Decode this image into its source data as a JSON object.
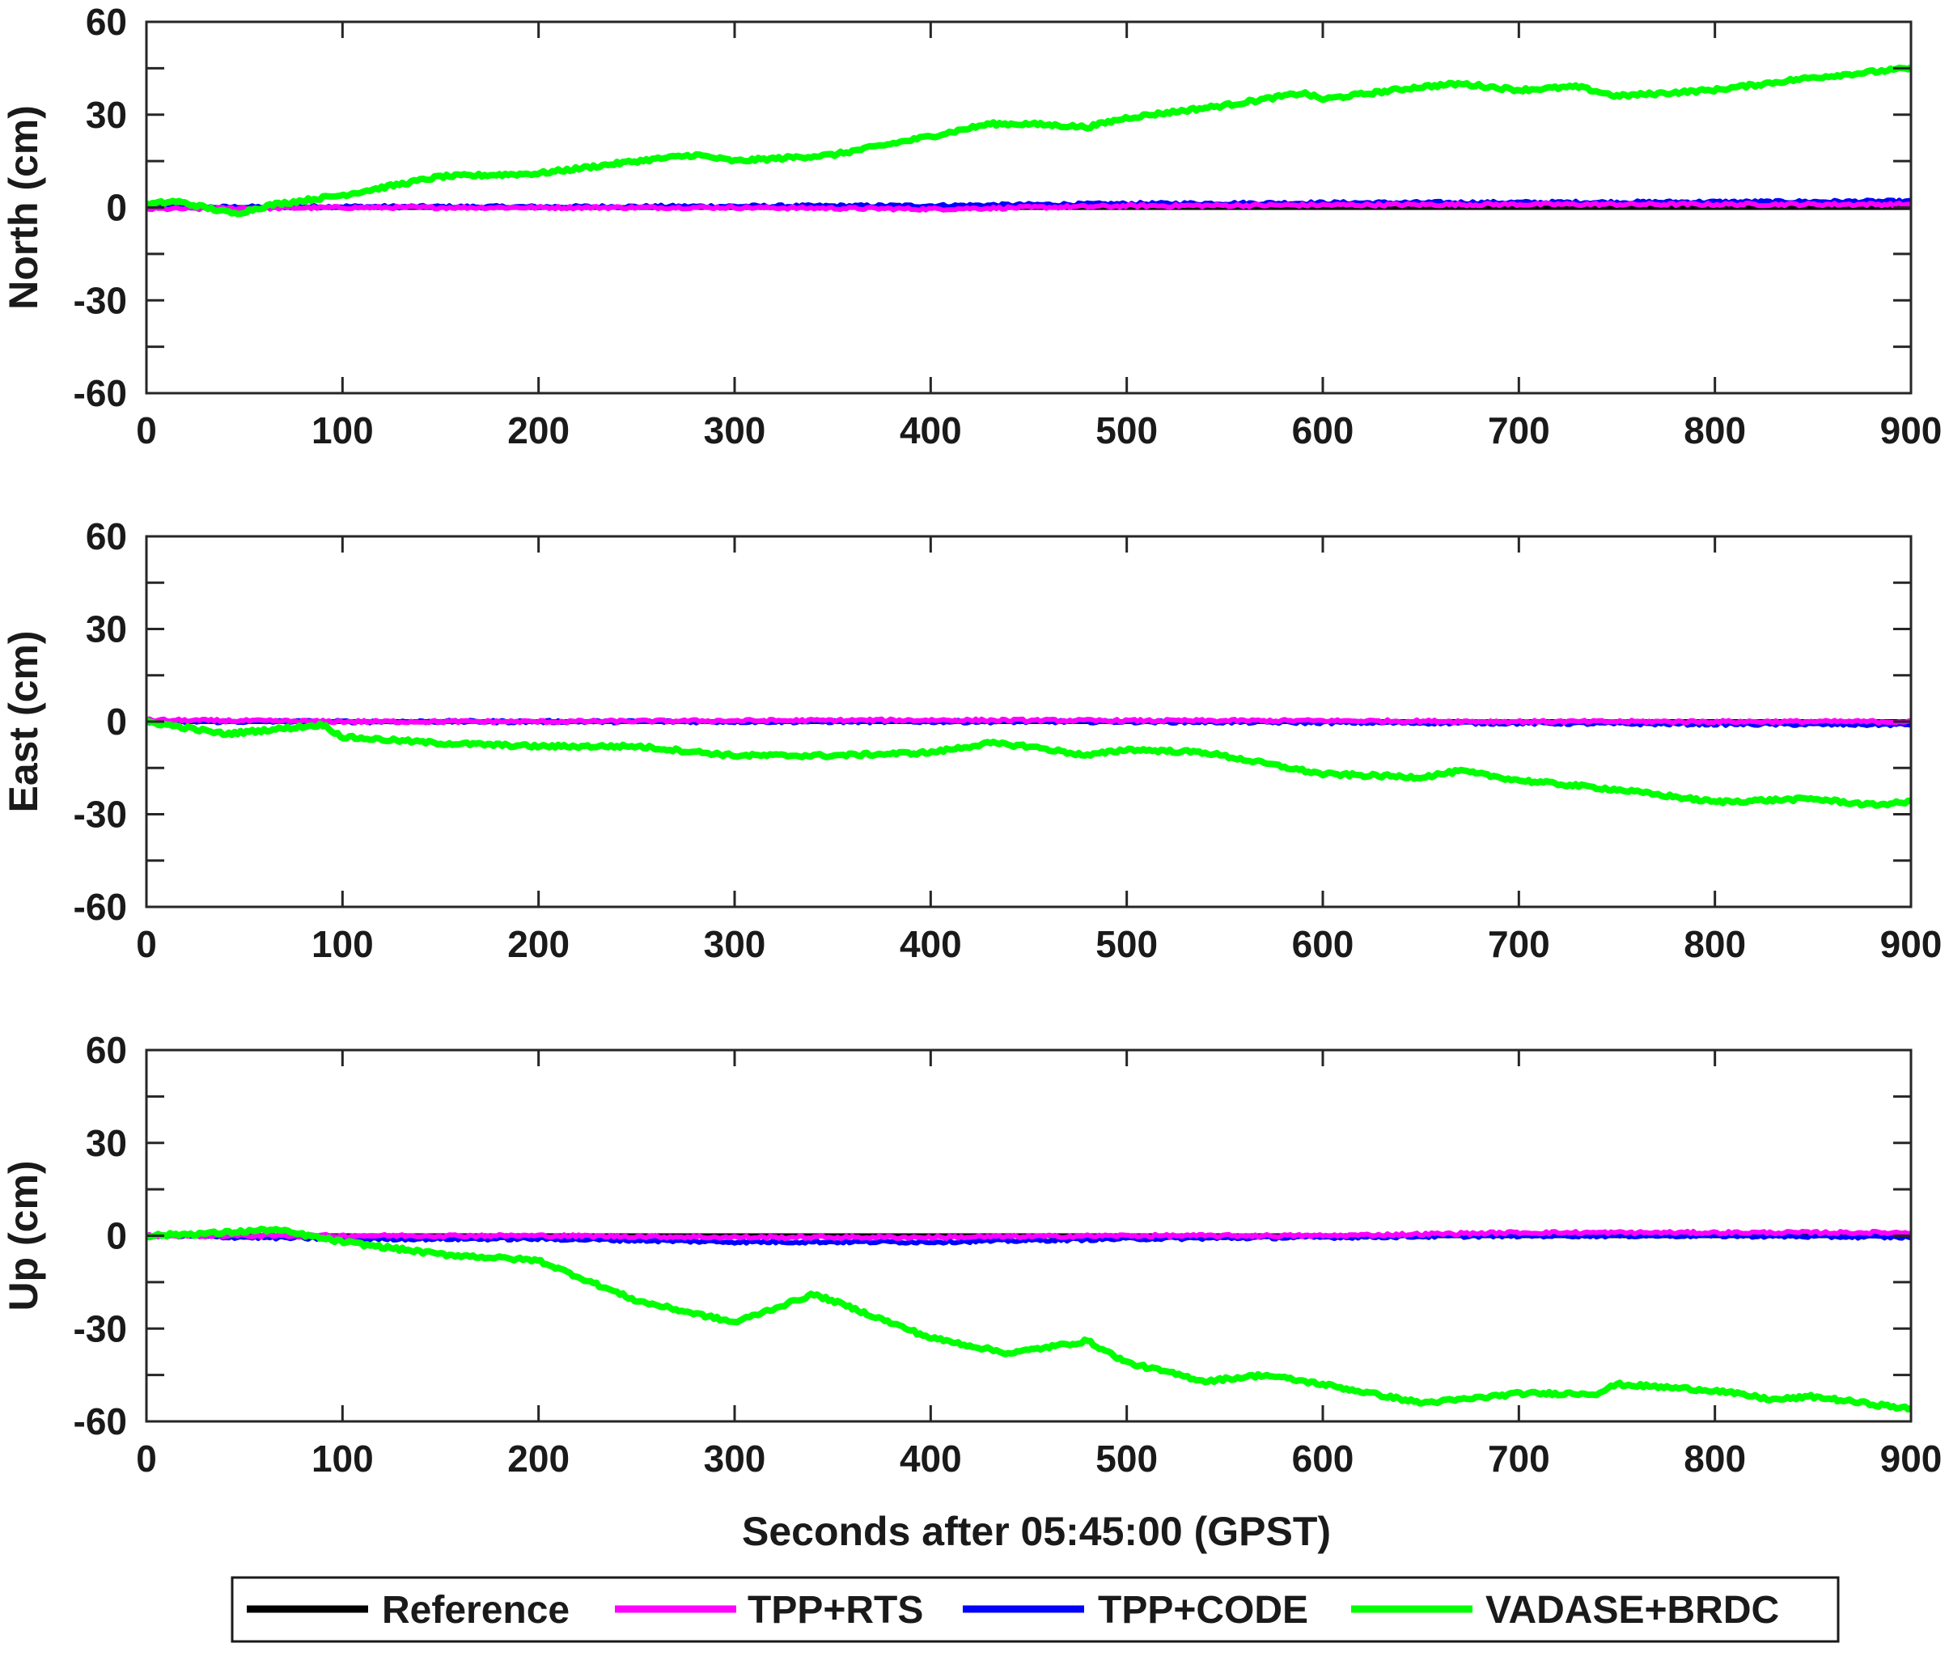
{
  "colors": {
    "Reference": "#000000",
    "TPP+RTS": "#ff00ff",
    "TPP+CODE": "#0000ff",
    "VADASE+BRDC": "#00ff00"
  },
  "chart_data": [
    {
      "type": "line",
      "panel": "north",
      "ylabel": "North (cm)",
      "xlabel": "",
      "xlim": [
        0,
        900
      ],
      "ylim": [
        -60,
        60
      ],
      "xticks": [
        "0",
        "100",
        "200",
        "300",
        "400",
        "500",
        "600",
        "700",
        "800",
        "900"
      ],
      "yticks": [
        "60",
        "30",
        "0",
        "-30",
        "-60"
      ],
      "series": [
        {
          "name": "Reference",
          "x": [
            0,
            900
          ],
          "y": [
            0,
            0
          ]
        },
        {
          "name": "TPP+CODE",
          "x": [
            0,
            100,
            200,
            300,
            400,
            500,
            600,
            700,
            800,
            900
          ],
          "y": [
            0,
            0.3,
            0.2,
            0.4,
            0.6,
            1.2,
            1.5,
            1.6,
            1.8,
            2.0
          ]
        },
        {
          "name": "TPP+RTS",
          "x": [
            0,
            100,
            200,
            300,
            400,
            500,
            600,
            700,
            800,
            900
          ],
          "y": [
            -0.5,
            0,
            0,
            0,
            -0.5,
            0.5,
            0.8,
            1,
            1,
            1
          ]
        },
        {
          "name": "VADASE+BRDC",
          "x": [
            0,
            15,
            45,
            65,
            100,
            150,
            200,
            250,
            280,
            300,
            350,
            400,
            430,
            450,
            480,
            500,
            550,
            590,
            600,
            650,
            670,
            700,
            730,
            750,
            800,
            850,
            900
          ],
          "y": [
            1,
            2,
            -2,
            1,
            4,
            10,
            11,
            15,
            17,
            15,
            17,
            23,
            27,
            27,
            26,
            29,
            33,
            37,
            35,
            39,
            40,
            38,
            39,
            36,
            38,
            42,
            45
          ]
        }
      ]
    },
    {
      "type": "line",
      "panel": "east",
      "ylabel": "East (cm)",
      "xlabel": "",
      "xlim": [
        0,
        900
      ],
      "ylim": [
        -60,
        60
      ],
      "xticks": [
        "0",
        "100",
        "200",
        "300",
        "400",
        "500",
        "600",
        "700",
        "800",
        "900"
      ],
      "yticks": [
        "60",
        "30",
        "0",
        "-30",
        "-60"
      ],
      "series": [
        {
          "name": "Reference",
          "x": [
            0,
            900
          ],
          "y": [
            0,
            0
          ]
        },
        {
          "name": "TPP+CODE",
          "x": [
            0,
            100,
            200,
            300,
            400,
            500,
            600,
            700,
            800,
            900
          ],
          "y": [
            0,
            0,
            0,
            0,
            0,
            0,
            -0.3,
            -0.5,
            -0.8,
            -1
          ]
        },
        {
          "name": "TPP+RTS",
          "x": [
            0,
            100,
            200,
            300,
            400,
            500,
            600,
            700,
            800,
            900
          ],
          "y": [
            0.5,
            0,
            0,
            0.3,
            0.5,
            0.3,
            0.3,
            0,
            0,
            0
          ]
        },
        {
          "name": "VADASE+BRDC",
          "x": [
            0,
            40,
            90,
            100,
            150,
            200,
            250,
            300,
            350,
            400,
            430,
            450,
            480,
            500,
            540,
            600,
            650,
            670,
            700,
            750,
            800,
            850,
            880,
            900
          ],
          "y": [
            0,
            -4,
            -1,
            -5,
            -7,
            -8,
            -8,
            -11,
            -11,
            -10,
            -7,
            -8,
            -11,
            -9,
            -10,
            -17,
            -18,
            -16,
            -19,
            -22,
            -26,
            -25,
            -27,
            -26
          ]
        }
      ]
    },
    {
      "type": "line",
      "panel": "up",
      "ylabel": "Up (cm)",
      "xlabel": "Seconds after 05:45:00 (GPST)",
      "xlim": [
        0,
        900
      ],
      "ylim": [
        -60,
        60
      ],
      "xticks": [
        "0",
        "100",
        "200",
        "300",
        "400",
        "500",
        "600",
        "700",
        "800",
        "900"
      ],
      "yticks": [
        "60",
        "30",
        "0",
        "-30",
        "-60"
      ],
      "series": [
        {
          "name": "Reference",
          "x": [
            0,
            900
          ],
          "y": [
            0,
            0
          ]
        },
        {
          "name": "TPP+CODE",
          "x": [
            0,
            100,
            200,
            300,
            400,
            500,
            600,
            700,
            800,
            900
          ],
          "y": [
            0,
            -1,
            -1,
            -2,
            -2,
            -1,
            -0.5,
            0,
            0,
            -0.5
          ]
        },
        {
          "name": "TPP+RTS",
          "x": [
            0,
            100,
            200,
            300,
            400,
            500,
            600,
            700,
            800,
            900
          ],
          "y": [
            0,
            0,
            0,
            -0.5,
            -0.5,
            0,
            0,
            1,
            1,
            1
          ]
        },
        {
          "name": "VADASE+BRDC",
          "x": [
            0,
            40,
            65,
            100,
            150,
            200,
            250,
            300,
            340,
            350,
            400,
            440,
            480,
            500,
            540,
            570,
            600,
            650,
            670,
            700,
            740,
            750,
            800,
            830,
            850,
            900
          ],
          "y": [
            0,
            1,
            2,
            -2,
            -6,
            -8,
            -21,
            -28,
            -19,
            -21,
            -33,
            -38,
            -34,
            -41,
            -47,
            -45,
            -48,
            -54,
            -53,
            -51,
            -51,
            -48,
            -50,
            -53,
            -52,
            -56
          ]
        }
      ]
    }
  ],
  "legend": {
    "placement": "bottom",
    "items": [
      {
        "label": "Reference",
        "color": "#000000"
      },
      {
        "label": "TPP+RTS",
        "color": "#ff00ff"
      },
      {
        "label": "TPP+CODE",
        "color": "#0000ff"
      },
      {
        "label": "VADASE+BRDC",
        "color": "#00ff00"
      }
    ]
  }
}
